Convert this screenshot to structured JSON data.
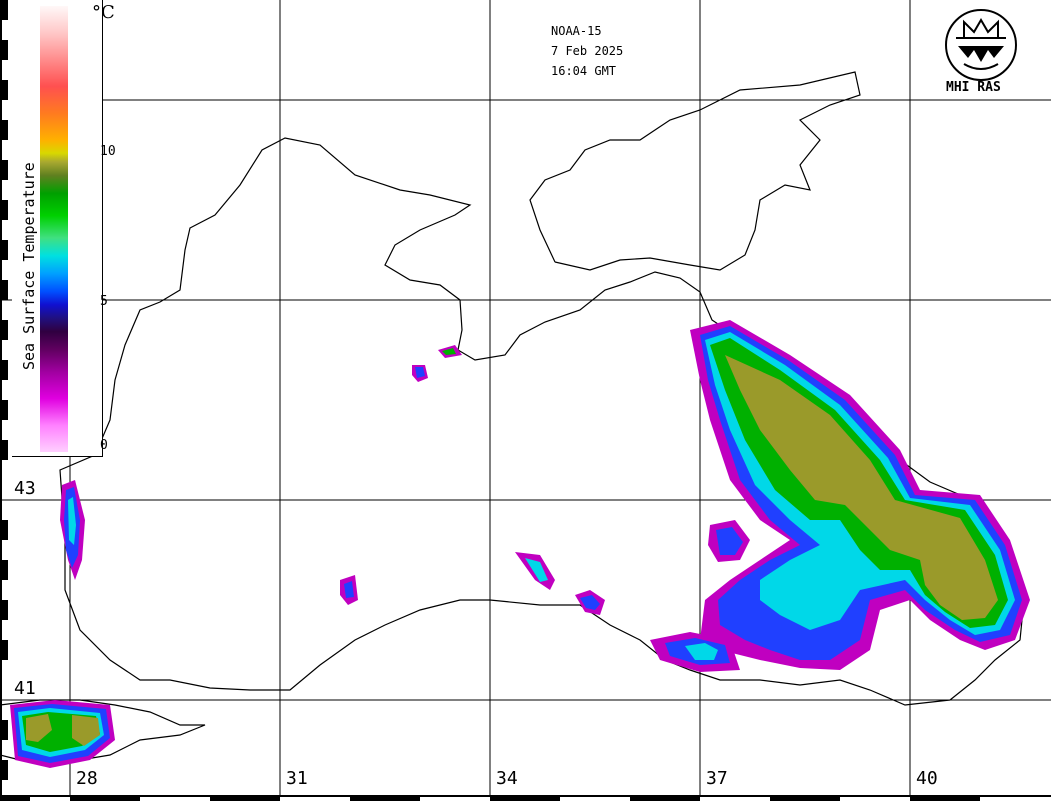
{
  "header": {
    "satellite": "NOAA-15",
    "date": "7 Feb 2025",
    "time": "16:04 GMT"
  },
  "logo": {
    "text": "MHI RAS"
  },
  "legend": {
    "title": "Sea Surface Temperature",
    "unit": "°C",
    "ticks": [
      "10",
      "5",
      "0"
    ]
  },
  "grid": {
    "lat_labels": [
      "43",
      "41"
    ],
    "lon_labels": [
      "28",
      "31",
      "34",
      "37",
      "40"
    ]
  },
  "colors": {
    "coast": "#000000",
    "grid": "#000000",
    "warm": "#9a9a2a",
    "mild": "#00b000",
    "cool": "#00d8e8",
    "cold": "#2040ff",
    "freeze": "#c000c0"
  }
}
